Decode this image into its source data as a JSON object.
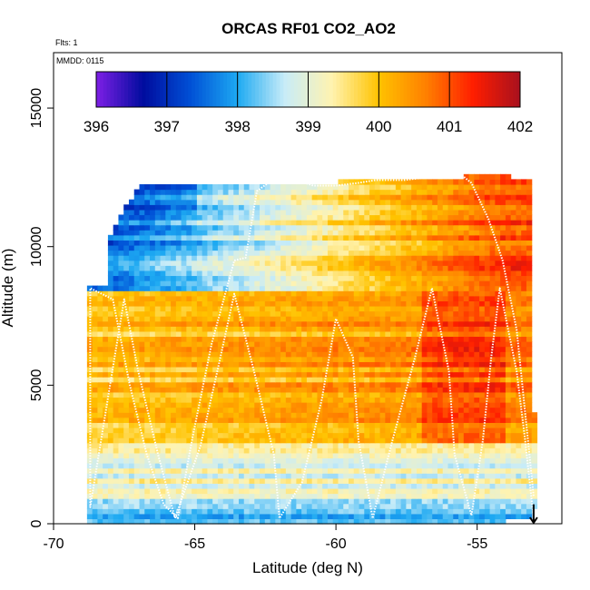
{
  "chart_data": {
    "type": "heatmap",
    "title": "ORCAS RF01 CO2_AO2",
    "xlabel": "Latitude (deg N)",
    "ylabel": "Altitude (m)",
    "xlim": [
      -70,
      -52
    ],
    "ylim": [
      0,
      17000
    ],
    "x_ticks": [
      -70,
      -65,
      -60,
      -55
    ],
    "x_tick_labels": [
      "-70",
      "-65",
      "-60",
      "-55"
    ],
    "y_ticks": [
      0,
      5000,
      10000,
      15000
    ],
    "y_tick_labels": [
      "0",
      "5000",
      "10000",
      "15000"
    ],
    "notes": {
      "flights": "Flts: 1",
      "date": "MMDD: 0115"
    },
    "colorbar": {
      "min": 396,
      "max": 402,
      "ticks": [
        396,
        397,
        398,
        399,
        400,
        401,
        402
      ],
      "tick_labels": [
        "396",
        "397",
        "398",
        "399",
        "400",
        "401",
        "402"
      ],
      "colors": [
        "#7e1fe6",
        "#000c9e",
        "#0050d6",
        "#1da9f2",
        "#c8ecf8",
        "#fff3b0",
        "#ffc300",
        "#ff8000",
        "#ff1e00",
        "#a8101e"
      ]
    },
    "field_description": "Gridded CO2 concentration (ppm) along flight track: high values (~400.5-401.5) at upper altitudes toward -54 to -57 lat; low values (~397-398) near -68 lat at 10-12 km and in lowest levels near surface.",
    "flight_track": {
      "lat": [
        -53.0,
        -53.3,
        -53.6,
        -54.2,
        -54.5,
        -54.8,
        -55.2,
        -55.8,
        -56.0,
        -56.6,
        -57.2,
        -58.0,
        -58.7,
        -59.2,
        -59.4,
        -60.0,
        -60.5,
        -61.2,
        -62.0,
        -62.2,
        -62.9,
        -63.6,
        -64.2,
        -64.8,
        -65.7,
        -66.3,
        -67.0,
        -67.5,
        -68.0,
        -68.4,
        -68.7,
        -68.7,
        -67.9,
        -67.3,
        -66.7,
        -66.1,
        -65.6,
        -65.1,
        -64.4,
        -63.6,
        -63.2,
        -62.8,
        -62.4,
        -62.0,
        -61.5,
        -61.1,
        -60.8,
        -60.6,
        -60.0,
        -59.2,
        -58.6,
        -57.6,
        -56.8,
        -56.2,
        -55.7,
        -55.2,
        -54.6,
        -54.1,
        -53.6,
        -53.2,
        -53.0
      ],
      "alt": [
        200,
        3000,
        5500,
        8500,
        6000,
        3000,
        300,
        2500,
        5500,
        8500,
        6000,
        3000,
        200,
        3000,
        6000,
        7400,
        4500,
        1500,
        200,
        2500,
        5500,
        8300,
        5500,
        2800,
        200,
        2500,
        5500,
        8100,
        5000,
        2500,
        600,
        8500,
        8100,
        5000,
        2500,
        700,
        200,
        3000,
        6500,
        9500,
        9600,
        12000,
        12300,
        12400,
        12500,
        12300,
        12200,
        12200,
        12200,
        12300,
        12400,
        12400,
        12500,
        12600,
        12700,
        12300,
        11000,
        9500,
        7000,
        3000,
        1000
      ]
    }
  }
}
